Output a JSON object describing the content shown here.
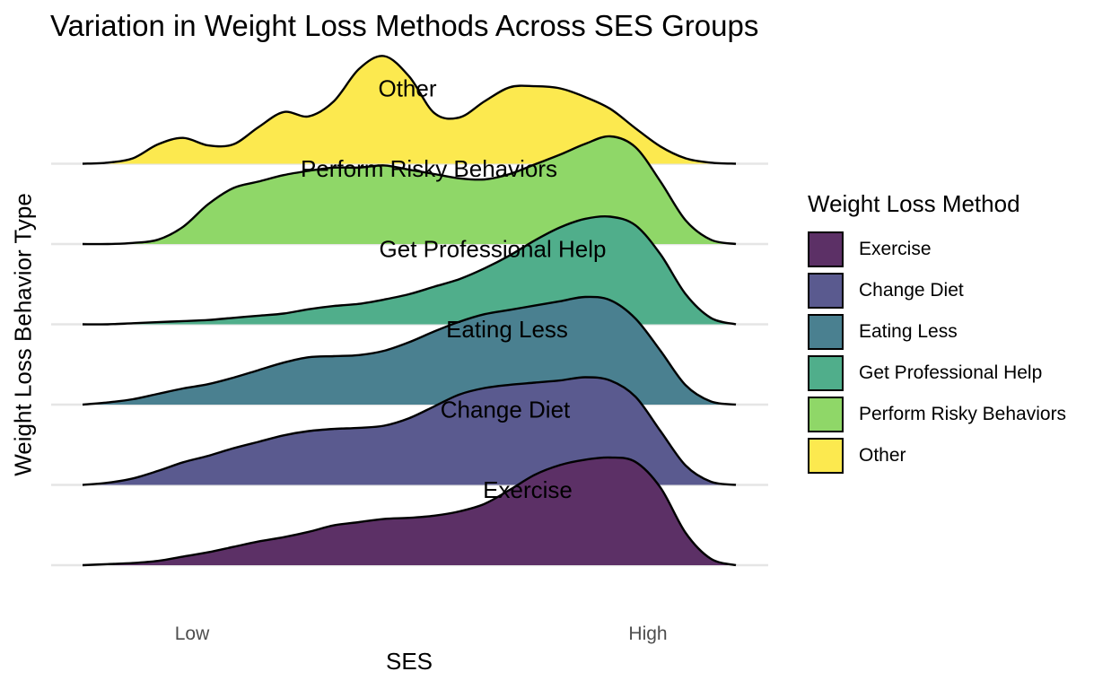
{
  "chart_data": {
    "type": "ridgeline",
    "title": "Variation in Weight Loss Methods Across SES Groups",
    "xlabel": "SES",
    "ylabel": "Weight Loss Behavior Type",
    "x_tick_labels": [
      "Low",
      "High"
    ],
    "xlim": [
      0,
      1
    ],
    "legend_title": "Weight Loss Method",
    "legend_position": "right",
    "grid": true,
    "series": [
      {
        "name": "Exercise",
        "color": "#5c3066",
        "density": [
          0,
          0.01,
          0.02,
          0.04,
          0.08,
          0.12,
          0.17,
          0.22,
          0.26,
          0.31,
          0.37,
          0.4,
          0.43,
          0.44,
          0.46,
          0.5,
          0.57,
          0.7,
          0.84,
          0.93,
          0.98,
          1.0,
          0.96,
          0.72,
          0.3,
          0.06,
          0
        ]
      },
      {
        "name": "Change Diet",
        "color": "#5a5a8f",
        "density": [
          0,
          0.02,
          0.06,
          0.13,
          0.21,
          0.27,
          0.34,
          0.4,
          0.46,
          0.5,
          0.52,
          0.53,
          0.55,
          0.62,
          0.73,
          0.84,
          0.9,
          0.93,
          0.95,
          0.97,
          1.0,
          0.97,
          0.82,
          0.5,
          0.18,
          0.03,
          0
        ]
      },
      {
        "name": "Eating Less",
        "color": "#4a8090",
        "density": [
          0,
          0.02,
          0.05,
          0.1,
          0.15,
          0.19,
          0.25,
          0.32,
          0.39,
          0.44,
          0.45,
          0.46,
          0.5,
          0.58,
          0.68,
          0.77,
          0.84,
          0.88,
          0.92,
          0.96,
          1.0,
          0.97,
          0.8,
          0.5,
          0.18,
          0.03,
          0
        ]
      },
      {
        "name": "Get Professional Help",
        "color": "#50ae8b",
        "density": [
          0,
          0.0,
          0.01,
          0.02,
          0.03,
          0.04,
          0.06,
          0.08,
          0.1,
          0.14,
          0.17,
          0.19,
          0.23,
          0.28,
          0.35,
          0.42,
          0.52,
          0.64,
          0.78,
          0.9,
          0.98,
          1.0,
          0.92,
          0.65,
          0.28,
          0.06,
          0
        ]
      },
      {
        "name": "Perform Risky Behaviors",
        "color": "#8fd768",
        "density": [
          0,
          0.0,
          0.01,
          0.04,
          0.16,
          0.37,
          0.52,
          0.58,
          0.64,
          0.68,
          0.71,
          0.71,
          0.73,
          0.69,
          0.65,
          0.61,
          0.6,
          0.65,
          0.74,
          0.83,
          0.93,
          1.0,
          0.9,
          0.58,
          0.22,
          0.04,
          0
        ]
      },
      {
        "name": "Other",
        "color": "#fce94f",
        "density": [
          0,
          0.01,
          0.05,
          0.18,
          0.24,
          0.17,
          0.18,
          0.34,
          0.48,
          0.44,
          0.58,
          0.88,
          1.0,
          0.81,
          0.47,
          0.43,
          0.58,
          0.71,
          0.72,
          0.7,
          0.62,
          0.51,
          0.33,
          0.16,
          0.05,
          0.01,
          0
        ]
      }
    ]
  }
}
